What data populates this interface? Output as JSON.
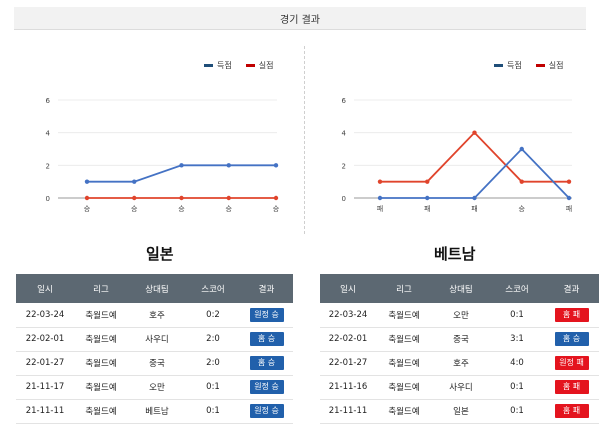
{
  "header": {
    "title": "경기 결과"
  },
  "legend": {
    "scored": "득점",
    "conceded": "실점"
  },
  "colors": {
    "scored": "#4472c4",
    "conceded": "#e0442c",
    "badge_win": "#2160ab",
    "badge_loss": "#e4141e",
    "table_header_bg": "#5c6872"
  },
  "table_headers": [
    "일시",
    "리그",
    "상대팀",
    "스코어",
    "결과"
  ],
  "teams": [
    {
      "name": "일본",
      "chart_data": {
        "type": "line",
        "categories": [
          "승",
          "승",
          "승",
          "승",
          "승"
        ],
        "series": [
          {
            "name": "득점",
            "values": [
              1,
              1,
              2,
              2,
              2
            ]
          },
          {
            "name": "실점",
            "values": [
              0,
              0,
              0,
              0,
              0
            ]
          }
        ],
        "yticks": [
          0,
          2,
          4,
          6
        ],
        "ylim": [
          0,
          6
        ],
        "legend_position": "top-right"
      },
      "matches": [
        {
          "date": "22-03-24",
          "league": "축월드예",
          "opponent": "호주",
          "score": "0:2",
          "result": "원정 승",
          "win": true
        },
        {
          "date": "22-02-01",
          "league": "축월드예",
          "opponent": "사우디",
          "score": "2:0",
          "result": "홈 승",
          "win": true
        },
        {
          "date": "22-01-27",
          "league": "축월드예",
          "opponent": "중국",
          "score": "2:0",
          "result": "홈 승",
          "win": true
        },
        {
          "date": "21-11-17",
          "league": "축월드예",
          "opponent": "오만",
          "score": "0:1",
          "result": "원정 승",
          "win": true
        },
        {
          "date": "21-11-11",
          "league": "축월드예",
          "opponent": "베트남",
          "score": "0:1",
          "result": "원정 승",
          "win": true
        }
      ]
    },
    {
      "name": "베트남",
      "chart_data": {
        "type": "line",
        "categories": [
          "패",
          "패",
          "패",
          "승",
          "패"
        ],
        "series": [
          {
            "name": "득점",
            "values": [
              0,
              0,
              0,
              3,
              0
            ]
          },
          {
            "name": "실점",
            "values": [
              1,
              1,
              4,
              1,
              1
            ]
          }
        ],
        "yticks": [
          0,
          2,
          4,
          6
        ],
        "ylim": [
          0,
          6
        ],
        "legend_position": "top-right"
      },
      "matches": [
        {
          "date": "22-03-24",
          "league": "축월드예",
          "opponent": "오만",
          "score": "0:1",
          "result": "홈 패",
          "win": false
        },
        {
          "date": "22-02-01",
          "league": "축월드예",
          "opponent": "중국",
          "score": "3:1",
          "result": "홈 승",
          "win": true
        },
        {
          "date": "22-01-27",
          "league": "축월드예",
          "opponent": "호주",
          "score": "4:0",
          "result": "원정 패",
          "win": false
        },
        {
          "date": "21-11-16",
          "league": "축월드예",
          "opponent": "사우디",
          "score": "0:1",
          "result": "홈 패",
          "win": false
        },
        {
          "date": "21-11-11",
          "league": "축월드예",
          "opponent": "일본",
          "score": "0:1",
          "result": "홈 패",
          "win": false
        }
      ]
    }
  ]
}
